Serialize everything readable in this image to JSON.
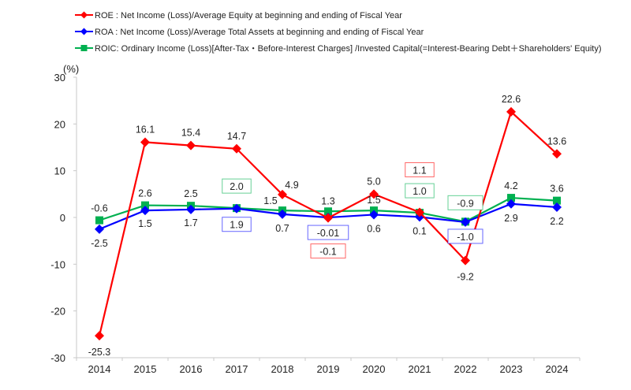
{
  "chart_data": {
    "type": "line",
    "ylabel": "(%)",
    "ylim": [
      -30,
      30
    ],
    "yticks": [
      30,
      20,
      10,
      0,
      -10,
      -20,
      -30
    ],
    "categories": [
      "2014",
      "2015",
      "2016",
      "2017",
      "2018",
      "2019",
      "2020",
      "2021",
      "2022",
      "2023",
      "2024"
    ],
    "grid": false,
    "legend_position": "top",
    "series": [
      {
        "name": "ROE",
        "legend": "ROE : Net Income (Loss)/Average Equity at beginning and ending of Fiscal Year",
        "color": "#ff0000",
        "marker": "diamond",
        "values": [
          -25.3,
          16.1,
          15.4,
          14.7,
          4.9,
          -0.1,
          5.0,
          1.1,
          -9.2,
          22.6,
          13.6
        ],
        "labels": [
          "-25.3",
          "16.1",
          "15.4",
          "14.7",
          "4.9",
          "-0.1",
          "5.0",
          "1.1",
          "-9.2",
          "22.6",
          "13.6"
        ]
      },
      {
        "name": "ROA",
        "legend": "ROA : Net Income (Loss)/Average Total Assets at beginning and ending of Fiscal Year",
        "color": "#0000ff",
        "marker": "diamond",
        "values": [
          -2.5,
          1.5,
          1.7,
          1.9,
          0.7,
          -0.01,
          0.6,
          0.1,
          -1.0,
          2.9,
          2.2
        ],
        "labels": [
          "-2.5",
          "1.5",
          "1.7",
          "1.9",
          "0.7",
          "-0.01",
          "0.6",
          "0.1",
          "-1.0",
          "2.9",
          "2.2"
        ]
      },
      {
        "name": "ROIC",
        "legend": "ROIC: Ordinary Income (Loss)[After-Tax・Before-Interest Charges]  /Invested Capital(=Interest-Bearing Debt＋Shareholders' Equity)",
        "color": "#00b050",
        "marker": "square",
        "values": [
          -0.6,
          2.6,
          2.5,
          2.0,
          1.5,
          1.3,
          1.5,
          1.0,
          -0.9,
          4.2,
          3.6
        ],
        "labels": [
          "-0.6",
          "2.6",
          "2.5",
          "2.0",
          "1.5",
          "1.3",
          "1.5",
          "1.0",
          "-0.9",
          "4.2",
          "3.6"
        ]
      }
    ]
  }
}
